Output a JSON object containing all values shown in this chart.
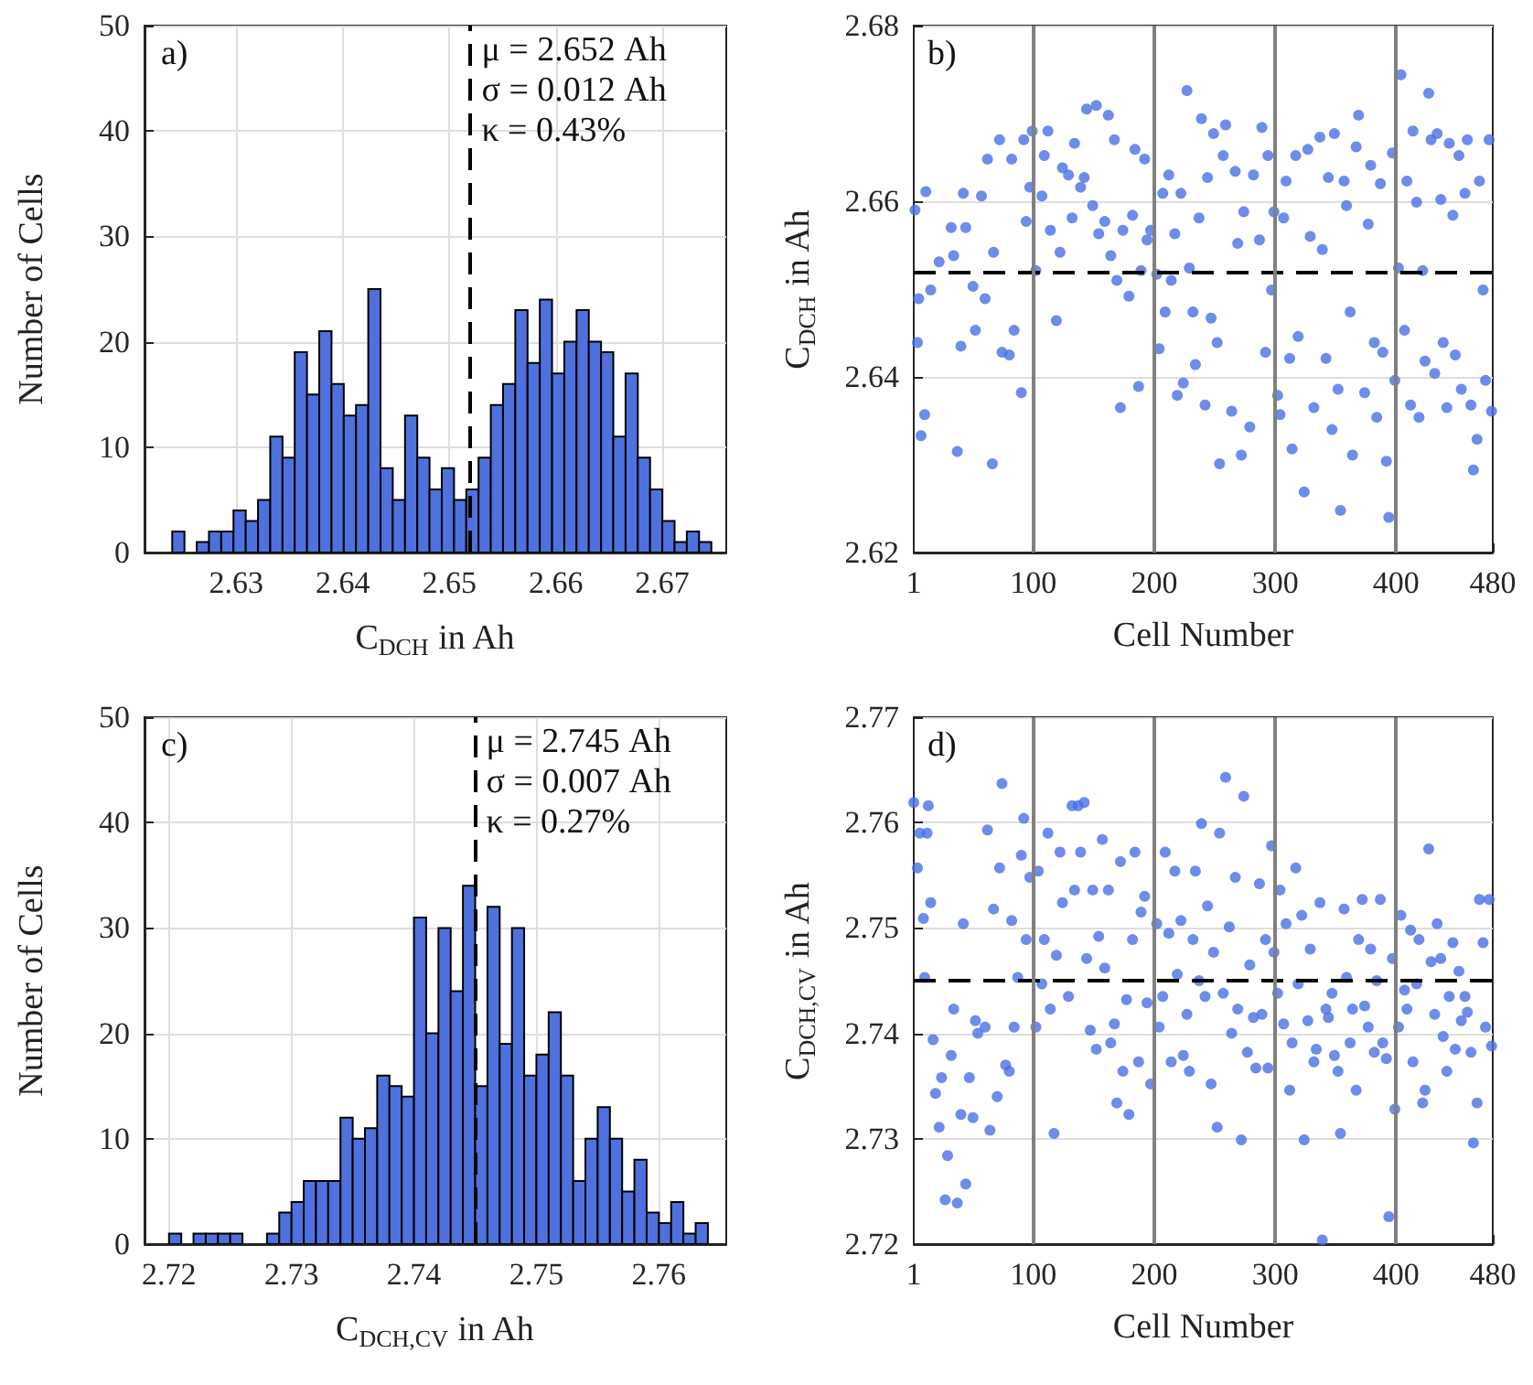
{
  "chart_data": [
    {
      "type": "histogram",
      "xlabel": "C$_{DCH}$ in Ah",
      "ylabel": "Number of Cells",
      "color": "#4f71dd",
      "bins": [
        2.624,
        2.62515,
        2.6263,
        2.62745,
        2.6286,
        2.62975,
        2.6309,
        2.63205,
        2.6332,
        2.63435,
        2.6355,
        2.63665,
        2.6378,
        2.63895,
        2.6401,
        2.64125,
        2.6424,
        2.64355,
        2.6447,
        2.64585,
        2.647,
        2.64815,
        2.6493,
        2.65045,
        2.6516,
        2.65275,
        2.6539,
        2.65505,
        2.6562,
        2.65735,
        2.6585,
        2.65965,
        2.6608,
        2.66195,
        2.6631,
        2.66425,
        2.6654,
        2.66655,
        2.6677,
        2.66885,
        2.67,
        2.67115,
        2.6723,
        2.67345,
        2.6746
      ],
      "values": [
        2,
        0,
        1,
        2,
        2,
        4,
        3,
        5,
        11,
        9,
        19,
        15,
        21,
        16,
        13,
        14,
        25,
        8,
        5,
        13,
        9,
        6,
        8,
        5,
        6,
        9,
        14,
        16,
        23,
        18,
        24,
        17,
        20,
        23,
        20,
        19,
        11,
        17,
        9,
        6,
        3,
        1,
        2,
        1
      ],
      "xlim": [
        2.6214,
        2.676
      ],
      "xticks": [
        2.63,
        2.64,
        2.65,
        2.66,
        2.67
      ],
      "ylim": [
        0,
        50
      ],
      "yticks": [
        0,
        10,
        20,
        30,
        40,
        50
      ],
      "grid": true,
      "ref_lines": [
        {
          "axis": "x",
          "value": 2.652,
          "color": "#000000",
          "line_style": "dashed"
        }
      ],
      "annotations": [
        "a)",
        "μ = 2.652 Ah",
        "σ = 0.012 Ah",
        "κ = 0.43%"
      ]
    },
    {
      "type": "scatter",
      "xlabel": "Cell Number",
      "ylabel": "C$_{DCH}$ in Ah",
      "color": "#4a6fe3",
      "marker": "circle",
      "x": [
        2,
        11,
        5,
        4,
        7,
        10,
        15,
        22,
        32,
        34,
        37,
        40,
        42,
        44,
        50,
        52,
        57,
        60,
        62,
        66,
        67,
        72,
        74,
        80,
        82,
        84,
        90,
        92,
        94,
        97,
        99,
        102,
        107,
        109,
        112,
        114,
        119,
        122,
        124,
        129,
        132,
        134,
        139,
        142,
        144,
        149,
        152,
        154,
        159,
        162,
        164,
        167,
        169,
        172,
        174,
        179,
        182,
        184,
        187,
        189,
        192,
        194,
        197,
        202,
        204,
        207,
        209,
        212,
        214,
        217,
        219,
        222,
        224,
        227,
        229,
        232,
        234,
        237,
        239,
        242,
        244,
        247,
        249,
        252,
        254,
        257,
        259,
        264,
        267,
        269,
        272,
        274,
        279,
        282,
        287,
        289,
        292,
        294,
        297,
        299,
        302,
        304,
        307,
        309,
        312,
        314,
        317,
        319,
        324,
        327,
        329,
        332,
        337,
        339,
        342,
        344,
        347,
        349,
        352,
        354,
        357,
        359,
        362,
        364,
        367,
        369,
        374,
        377,
        379,
        382,
        384,
        387,
        389,
        392,
        394,
        397,
        399,
        402,
        404,
        407,
        409,
        412,
        414,
        417,
        419,
        422,
        424,
        427,
        429,
        432,
        434,
        437,
        439,
        442,
        444,
        447,
        449,
        452,
        454,
        457,
        459,
        462,
        464,
        467,
        469,
        472,
        474,
        477,
        479
      ],
      "values": [
        2.659,
        2.6611,
        2.6489,
        2.6439,
        2.6333,
        2.6357,
        2.6499,
        2.6531,
        2.657,
        2.6538,
        2.6315,
        2.6435,
        2.6609,
        2.657,
        2.6503,
        2.6453,
        2.6606,
        2.6489,
        2.6648,
        2.6301,
        2.6542,
        2.667,
        2.6428,
        2.6425,
        2.6648,
        2.6453,
        2.6382,
        2.667,
        2.6577,
        2.6616,
        2.668,
        2.6521,
        2.6606,
        2.6652,
        2.668,
        2.6567,
        2.6464,
        2.6542,
        2.6638,
        2.663,
        2.6581,
        2.6666,
        2.6616,
        2.6627,
        2.6705,
        2.6595,
        2.6709,
        2.6563,
        2.6577,
        2.6698,
        2.6538,
        2.667,
        2.651,
        2.6365,
        2.6567,
        2.6492,
        2.6584,
        2.6659,
        2.6389,
        2.6521,
        2.6648,
        2.6556,
        2.6567,
        2.6517,
        2.6432,
        2.6609,
        2.6474,
        2.663,
        2.651,
        2.6563,
        2.6379,
        2.6609,
        2.6393,
        2.6726,
        2.6524,
        2.6474,
        2.6414,
        2.6581,
        2.6694,
        2.6368,
        2.6627,
        2.6467,
        2.6677,
        2.6439,
        2.6301,
        2.6652,
        2.6687,
        2.6361,
        2.6634,
        2.6552,
        2.6311,
        2.6588,
        2.6343,
        2.663,
        2.6556,
        2.6684,
        2.6428,
        2.6652,
        2.6499,
        2.6588,
        2.6379,
        2.6357,
        2.6581,
        2.6623,
        2.6421,
        2.6318,
        2.6652,
        2.6446,
        2.6269,
        2.6659,
        2.656,
        2.6365,
        2.6673,
        2.6545,
        2.6421,
        2.6627,
        2.634,
        2.6677,
        2.6386,
        2.6248,
        2.6623,
        2.6595,
        2.6474,
        2.6311,
        2.6662,
        2.6698,
        2.6382,
        2.6574,
        2.6641,
        2.6439,
        2.6354,
        2.662,
        2.6428,
        2.6304,
        2.624,
        2.6655,
        2.6396,
        2.6524,
        2.6744,
        2.6453,
        2.6623,
        2.6368,
        2.668,
        2.6599,
        2.6354,
        2.6521,
        2.6418,
        2.6723,
        2.667,
        2.6404,
        2.6677,
        2.6602,
        2.6439,
        2.6365,
        2.6666,
        2.6584,
        2.6425,
        2.6652,
        2.6386,
        2.6609,
        2.667,
        2.6368,
        2.6294,
        2.6329,
        2.6623,
        2.6499,
        2.6396,
        2.667,
        2.6361
      ],
      "xlim": [
        1,
        480
      ],
      "xticks": [
        1,
        100,
        200,
        300,
        400,
        480
      ],
      "ylim": [
        2.62,
        2.68
      ],
      "yticks": [
        2.62,
        2.64,
        2.66,
        2.68
      ],
      "grid": "y",
      "ref_lines": [
        {
          "axis": "y",
          "value": 2.652,
          "color": "#000000",
          "line_style": "dashed"
        },
        {
          "axis": "x",
          "value": 100,
          "color": "#808080",
          "line_style": "solid"
        },
        {
          "axis": "x",
          "value": 200,
          "color": "#808080",
          "line_style": "solid"
        },
        {
          "axis": "x",
          "value": 300,
          "color": "#808080",
          "line_style": "solid"
        },
        {
          "axis": "x",
          "value": 400,
          "color": "#808080",
          "line_style": "solid"
        }
      ],
      "annotations": [
        "b)"
      ]
    },
    {
      "type": "histogram",
      "xlabel": "C$_{DCH,CV}$ in Ah",
      "ylabel": "Number of Cells",
      "color": "#4f71dd",
      "bins": [
        2.72,
        2.721,
        2.722,
        2.723,
        2.724,
        2.725,
        2.726,
        2.727,
        2.728,
        2.729,
        2.73,
        2.731,
        2.732,
        2.733,
        2.734,
        2.735,
        2.736,
        2.737,
        2.738,
        2.739,
        2.74,
        2.741,
        2.742,
        2.743,
        2.744,
        2.745,
        2.746,
        2.747,
        2.748,
        2.749,
        2.75,
        2.751,
        2.752,
        2.753,
        2.754,
        2.755,
        2.756,
        2.757,
        2.758,
        2.759,
        2.76,
        2.761,
        2.762,
        2.763,
        2.764
      ],
      "values": [
        1,
        0,
        1,
        1,
        1,
        1,
        0,
        0,
        1,
        3,
        4,
        6,
        6,
        6,
        12,
        10,
        11,
        16,
        15,
        14,
        31,
        20,
        30,
        24,
        34,
        15,
        32,
        19,
        30,
        16,
        18,
        22,
        16,
        6,
        10,
        13,
        10,
        5,
        8,
        3,
        2,
        4,
        1,
        2
      ],
      "xlim": [
        2.718,
        2.7655
      ],
      "xticks": [
        2.72,
        2.73,
        2.74,
        2.75,
        2.76
      ],
      "ylim": [
        0,
        50
      ],
      "yticks": [
        0,
        10,
        20,
        30,
        40,
        50
      ],
      "grid": true,
      "ref_lines": [
        {
          "axis": "x",
          "value": 2.745,
          "color": "#000000",
          "line_style": "dashed"
        }
      ],
      "annotations": [
        "c)",
        "μ = 2.745 Ah",
        "σ = 0.007 Ah",
        "κ = 0.27%"
      ]
    },
    {
      "type": "scatter",
      "xlabel": "Cell Number",
      "ylabel": "C$_{DCH,CV}$ in Ah",
      "color": "#4a6fe3",
      "marker": "circle",
      "x": [
        1,
        4,
        6,
        9,
        10,
        12,
        13,
        15,
        17,
        19,
        22,
        24,
        27,
        29,
        32,
        34,
        37,
        40,
        42,
        44,
        47,
        50,
        52,
        54,
        60,
        62,
        64,
        67,
        70,
        72,
        74,
        77,
        80,
        82,
        84,
        87,
        90,
        92,
        94,
        97,
        102,
        104,
        107,
        109,
        112,
        114,
        117,
        119,
        122,
        124,
        129,
        132,
        134,
        137,
        139,
        142,
        144,
        147,
        149,
        152,
        154,
        157,
        159,
        162,
        164,
        167,
        169,
        172,
        174,
        177,
        179,
        182,
        184,
        187,
        189,
        192,
        194,
        197,
        202,
        204,
        207,
        209,
        212,
        214,
        217,
        219,
        222,
        224,
        227,
        229,
        232,
        234,
        237,
        239,
        242,
        244,
        247,
        249,
        252,
        254,
        257,
        259,
        262,
        264,
        267,
        269,
        272,
        274,
        277,
        279,
        282,
        284,
        287,
        289,
        292,
        294,
        297,
        299,
        302,
        304,
        307,
        309,
        312,
        314,
        317,
        319,
        322,
        324,
        327,
        329,
        332,
        334,
        337,
        339,
        342,
        344,
        347,
        349,
        352,
        354,
        357,
        359,
        362,
        364,
        367,
        369,
        372,
        374,
        377,
        379,
        382,
        384,
        387,
        389,
        392,
        394,
        397,
        399,
        402,
        404,
        407,
        409,
        412,
        414,
        417,
        419,
        422,
        424,
        427,
        429,
        432,
        434,
        437,
        439,
        442,
        444,
        447,
        449,
        452,
        454,
        457,
        459,
        462,
        464,
        467,
        469,
        472,
        474,
        477,
        479
      ],
      "values": [
        2.7619,
        2.7557,
        2.759,
        2.7509,
        2.7453,
        2.759,
        2.7616,
        2.7524,
        2.7394,
        2.7343,
        2.7311,
        2.7358,
        2.7242,
        2.7284,
        2.7379,
        2.7423,
        2.7239,
        2.7323,
        2.7504,
        2.7257,
        2.7358,
        2.732,
        2.7412,
        2.74,
        2.7406,
        2.7593,
        2.7308,
        2.7518,
        2.734,
        2.7557,
        2.7637,
        2.737,
        2.7364,
        2.7507,
        2.7406,
        2.7453,
        2.7569,
        2.7604,
        2.7489,
        2.7548,
        2.7406,
        2.7554,
        2.7447,
        2.7489,
        2.759,
        2.7423,
        2.7305,
        2.7474,
        2.7572,
        2.7524,
        2.7435,
        2.7616,
        2.7536,
        2.7616,
        2.7572,
        2.7619,
        2.7471,
        2.7403,
        2.7536,
        2.7385,
        2.7492,
        2.7584,
        2.7462,
        2.7536,
        2.7391,
        2.7409,
        2.7334,
        2.7563,
        2.7364,
        2.7432,
        2.7323,
        2.7489,
        2.7572,
        2.7373,
        2.7515,
        2.753,
        2.7429,
        2.7352,
        2.7504,
        2.7406,
        2.7435,
        2.7572,
        2.7495,
        2.7373,
        2.7554,
        2.7456,
        2.7507,
        2.7379,
        2.7418,
        2.7364,
        2.7489,
        2.7554,
        2.745,
        2.7599,
        2.7435,
        2.7521,
        2.7352,
        2.7477,
        2.7311,
        2.759,
        2.7438,
        2.7643,
        2.7501,
        2.74,
        2.7548,
        2.7423,
        2.7299,
        2.7625,
        2.7382,
        2.7465,
        2.7415,
        2.7367,
        2.7542,
        2.7418,
        2.7489,
        2.7367,
        2.7578,
        2.7477,
        2.7438,
        2.7536,
        2.7409,
        2.7504,
        2.7346,
        2.7391,
        2.7557,
        2.7447,
        2.7512,
        2.7299,
        2.7412,
        2.748,
        2.7373,
        2.7385,
        2.7524,
        2.7204,
        2.7423,
        2.7415,
        2.7438,
        2.7379,
        2.7364,
        2.7305,
        2.7518,
        2.7453,
        2.7391,
        2.7423,
        2.7346,
        2.7489,
        2.7527,
        2.7426,
        2.7406,
        2.748,
        2.7382,
        2.745,
        2.7527,
        2.7391,
        2.7376,
        2.7226,
        2.7471,
        2.7328,
        2.7406,
        2.7512,
        2.7441,
        2.7423,
        2.7498,
        2.7373,
        2.7447,
        2.7489,
        2.7334,
        2.7346,
        2.7575,
        2.7468,
        2.7418,
        2.7504,
        2.7471,
        2.7397,
        2.7364,
        2.7435,
        2.7486,
        2.7385,
        2.7459,
        2.7412,
        2.7435,
        2.742,
        2.7382,
        2.7296,
        2.7334,
        2.7527,
        2.7486,
        2.7406,
        2.7527,
        2.7388
      ],
      "xlim": [
        1,
        480
      ],
      "xticks": [
        1,
        100,
        200,
        300,
        400,
        480
      ],
      "ylim": [
        2.72,
        2.77
      ],
      "yticks": [
        2.72,
        2.73,
        2.74,
        2.75,
        2.76,
        2.77
      ],
      "grid": "y",
      "ref_lines": [
        {
          "axis": "y",
          "value": 2.745,
          "color": "#000000",
          "line_style": "dashed"
        },
        {
          "axis": "x",
          "value": 100,
          "color": "#808080",
          "line_style": "solid"
        },
        {
          "axis": "x",
          "value": 200,
          "color": "#808080",
          "line_style": "solid"
        },
        {
          "axis": "x",
          "value": 300,
          "color": "#808080",
          "line_style": "solid"
        },
        {
          "axis": "x",
          "value": 400,
          "color": "#808080",
          "line_style": "solid"
        }
      ],
      "annotations": [
        "d)"
      ]
    }
  ]
}
